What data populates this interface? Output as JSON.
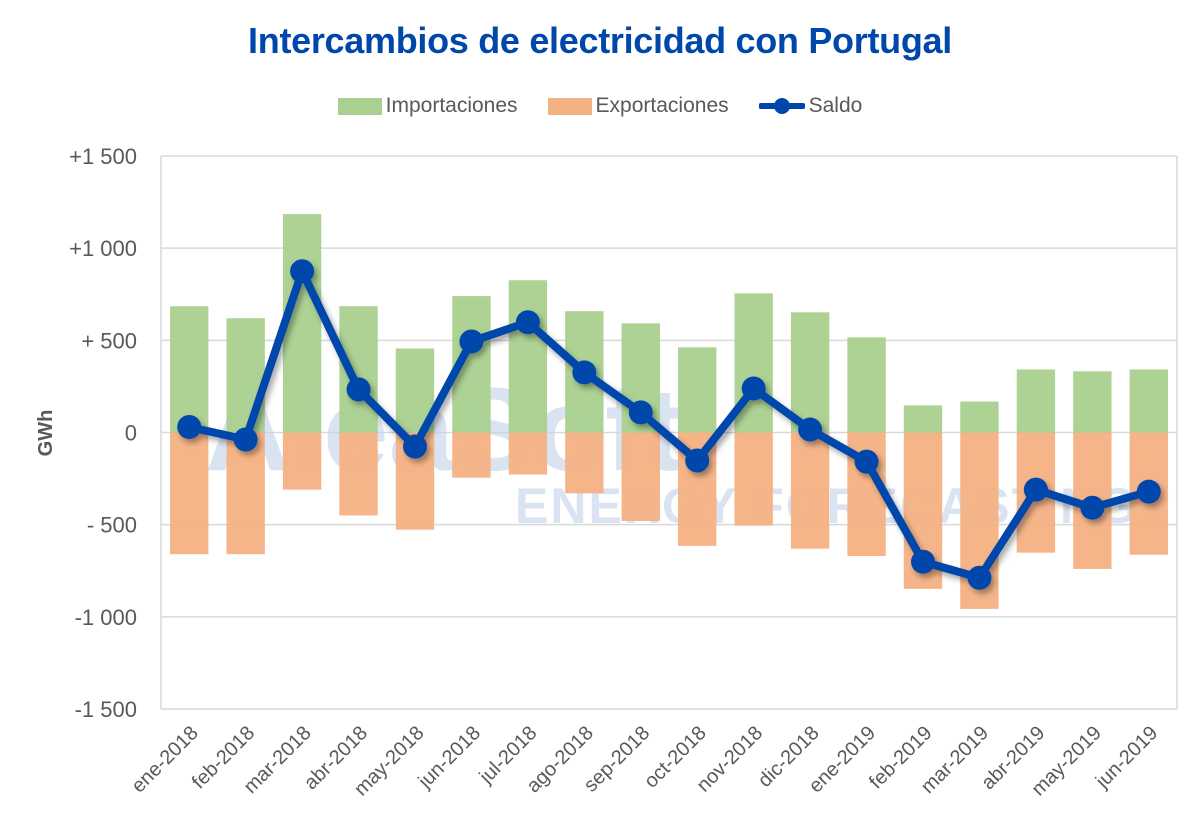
{
  "chart_data": {
    "type": "bar",
    "title": "Intercambios de electricidad con Portugal",
    "xlabel": "",
    "ylabel": "GWh",
    "ylim": [
      -1500,
      1500
    ],
    "yticks": [
      1500,
      1000,
      500,
      0,
      -500,
      -1000,
      -1500
    ],
    "ytick_labels": [
      "+1 500",
      "+1 000",
      "+ 500",
      "0",
      "- 500",
      "-1 000",
      "-1 500"
    ],
    "grid": true,
    "legend_position": "top-center",
    "categories": [
      "ene-2018",
      "feb-2018",
      "mar-2018",
      "abr-2018",
      "may-2018",
      "jun-2018",
      "jul-2018",
      "ago-2018",
      "sep-2018",
      "oct-2018",
      "nov-2018",
      "dic-2018",
      "ene-2019",
      "feb-2019",
      "mar-2019",
      "abr-2019",
      "may-2019",
      "jun-2019"
    ],
    "series": [
      {
        "name": "Importaciones",
        "type": "bar",
        "color": "#A9D08E",
        "values": [
          685,
          620,
          1185,
          685,
          456,
          740,
          826,
          658,
          592,
          462,
          755,
          652,
          516,
          147,
          168,
          342,
          332,
          342
        ]
      },
      {
        "name": "Exportaciones",
        "type": "bar",
        "color": "#F4B183",
        "values": [
          -660,
          -660,
          -310,
          -450,
          -527,
          -245,
          -228,
          -330,
          -480,
          -615,
          -505,
          -630,
          -670,
          -848,
          -957,
          -652,
          -740,
          -663
        ]
      },
      {
        "name": "Saldo",
        "type": "line",
        "color": "#0047AB",
        "values": [
          30,
          -38,
          875,
          234,
          -76,
          494,
          598,
          326,
          109,
          -152,
          239,
          16,
          -158,
          -701,
          -788,
          -310,
          -408,
          -321
        ]
      }
    ],
    "watermark": {
      "main": "AleaSoft",
      "sub": "ENERGY FORECASTING"
    }
  }
}
